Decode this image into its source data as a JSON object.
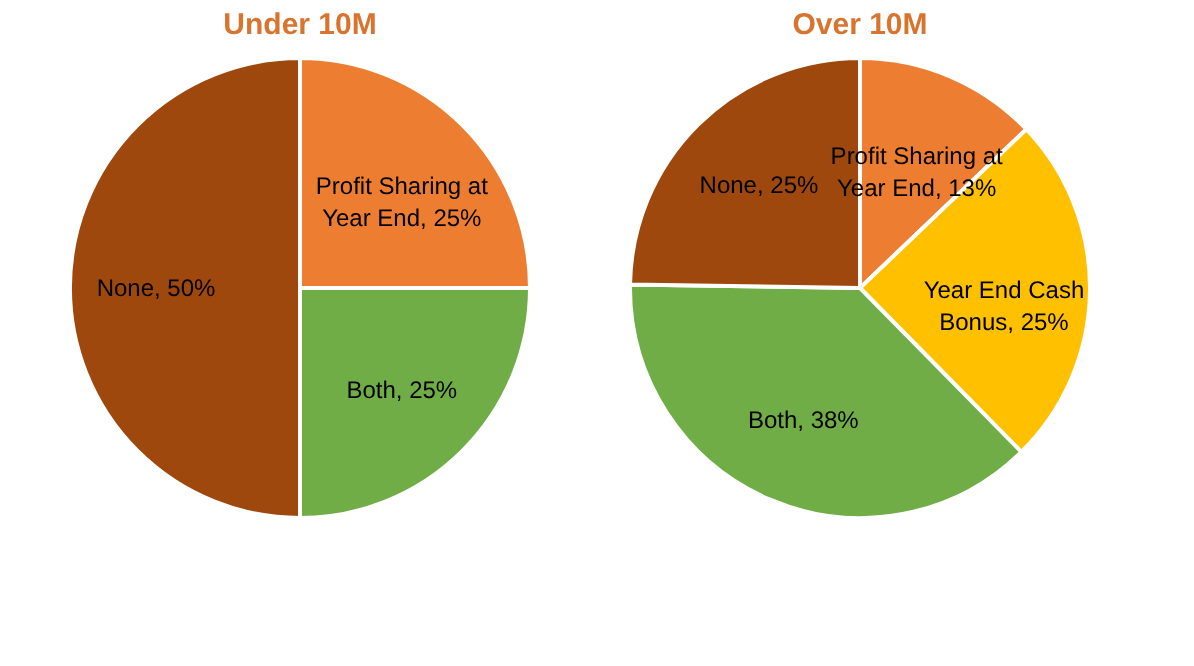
{
  "chart_data": [
    {
      "type": "pie",
      "title": "Under 10M",
      "categories": [
        "Profit Sharing at Year End",
        "Both",
        "None"
      ],
      "values": [
        25,
        25,
        50
      ],
      "colors": [
        "#ed7d31",
        "#70ad47",
        "#9e480e"
      ],
      "value_labels": [
        "25%",
        "25%",
        "50%"
      ]
    },
    {
      "type": "pie",
      "title": "Over 10M",
      "categories": [
        "Profit Sharing at Year End",
        "Year End Cash Bonus",
        "Both",
        "None"
      ],
      "values": [
        13,
        25,
        38,
        25
      ],
      "colors": [
        "#ed7d31",
        "#ffc000",
        "#70ad47",
        "#9e480e"
      ],
      "value_labels": [
        "13%",
        "25%",
        "38%",
        "25%"
      ]
    }
  ]
}
